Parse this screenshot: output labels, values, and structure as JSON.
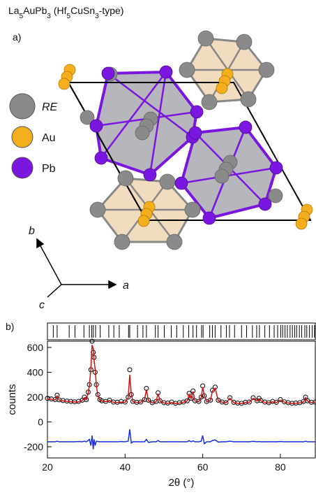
{
  "title_parts": [
    {
      "text": "La"
    },
    {
      "text": "5",
      "sub": true
    },
    {
      "text": "AuPb"
    },
    {
      "text": "3",
      "sub": true
    },
    {
      "text": " (Hf"
    },
    {
      "text": "5",
      "sub": true
    },
    {
      "text": "CuSn"
    },
    {
      "text": "3",
      "sub": true
    },
    {
      "text": "-type)"
    }
  ],
  "structure": {
    "panel_label": "a)",
    "legend": [
      {
        "label": "RE",
        "color": "#8a8a8a",
        "italic": true
      },
      {
        "label": "Au",
        "color": "#f5ae1e"
      },
      {
        "label": "Pb",
        "color": "#7b16e0"
      }
    ],
    "axes": {
      "a": "a",
      "b": "b",
      "c": "c"
    }
  },
  "chart_data": {
    "type": "line",
    "panel_label": "b)",
    "xlabel": "2θ (°)",
    "ylabel": "counts",
    "xlim": [
      20,
      89
    ],
    "ylim": [
      -290,
      650
    ],
    "xticks": [
      20,
      40,
      60,
      80
    ],
    "yticks": [
      600,
      400,
      200,
      0,
      -200
    ],
    "reflections": [
      21.5,
      22.5,
      25.6,
      27.1,
      29.4,
      30.8,
      31.4,
      31.8,
      32.4,
      33.6,
      35.8,
      37.1,
      38.5,
      40.9,
      41.2,
      43.2,
      44.6,
      45.5,
      47.8,
      48.5,
      50.1,
      51.9,
      53.3,
      55.0,
      56.4,
      57.5,
      58.4,
      59.7,
      60.1,
      61.8,
      62.5,
      63.2,
      64.7,
      66.1,
      66.9,
      68.2,
      70.0,
      71.3,
      72.8,
      73.9,
      74.6,
      76.0,
      77.2,
      78.4,
      79.3,
      80.1,
      80.6,
      81.2,
      81.8,
      82.5,
      83.1,
      83.7,
      84.2,
      84.9,
      85.5,
      86.3,
      86.8,
      87.5,
      88.2,
      88.8
    ],
    "x": [
      20,
      21,
      22,
      22.5,
      23,
      24,
      25,
      26,
      27,
      28,
      29,
      29.5,
      30,
      30.5,
      30.8,
      31.2,
      31.5,
      31.8,
      32,
      32.3,
      32.6,
      33,
      33.5,
      34,
      35,
      36,
      37,
      38,
      39,
      40,
      40.8,
      41.2,
      41.6,
      42,
      43,
      44,
      45,
      45.5,
      46,
      47,
      48,
      48.5,
      49,
      50,
      51,
      52,
      53,
      54,
      55,
      56,
      56.5,
      57,
      57.5,
      58,
      59,
      59.6,
      60,
      60.4,
      61,
      62,
      62.5,
      63.2,
      64,
      65,
      66,
      67,
      68,
      69,
      70,
      71,
      72,
      73,
      74,
      74.5,
      75,
      76,
      77,
      78,
      79,
      80,
      81,
      82,
      83,
      84,
      85,
      86,
      86.5,
      87,
      88,
      89
    ],
    "series": [
      {
        "color": "#000000",
        "style": "markers",
        "values": [
          190,
          185,
          180,
          215,
          178,
          172,
          168,
          165,
          162,
          165,
          175,
          200,
          180,
          240,
          300,
          420,
          650,
          560,
          520,
          400,
          300,
          220,
          180,
          170,
          165,
          175,
          160,
          158,
          165,
          160,
          200,
          420,
          220,
          165,
          158,
          160,
          180,
          270,
          175,
          155,
          165,
          235,
          170,
          155,
          152,
          160,
          150,
          155,
          160,
          170,
          230,
          190,
          250,
          170,
          165,
          200,
          290,
          210,
          165,
          175,
          255,
          280,
          175,
          160,
          155,
          195,
          158,
          152,
          150,
          158,
          160,
          195,
          170,
          190,
          172,
          160,
          155,
          165,
          158,
          180,
          162,
          155,
          150,
          152,
          155,
          165,
          200,
          170,
          158,
          160
        ]
      },
      {
        "color": "#d01010",
        "style": "line",
        "values": [
          185,
          182,
          178,
          210,
          176,
          170,
          166,
          163,
          160,
          162,
          172,
          195,
          178,
          232,
          290,
          430,
          620,
          590,
          500,
          420,
          295,
          215,
          178,
          168,
          163,
          172,
          158,
          156,
          160,
          158,
          195,
          380,
          225,
          163,
          156,
          158,
          178,
          260,
          172,
          153,
          162,
          228,
          168,
          153,
          150,
          157,
          148,
          152,
          158,
          168,
          222,
          186,
          245,
          168,
          163,
          196,
          280,
          215,
          163,
          172,
          248,
          272,
          172,
          158,
          153,
          190,
          156,
          150,
          148,
          156,
          158,
          190,
          168,
          186,
          170,
          158,
          153,
          162,
          156,
          176,
          160,
          153,
          148,
          150,
          153,
          162,
          195,
          168,
          156,
          158
        ]
      },
      {
        "color": "#1a2ee0",
        "style": "line",
        "values": [
          -160,
          -160,
          -160,
          -155,
          -160,
          -160,
          -160,
          -160,
          -160,
          -158,
          -160,
          -155,
          -160,
          -150,
          -140,
          -190,
          -110,
          -220,
          -140,
          -190,
          -155,
          -158,
          -160,
          -160,
          -160,
          -160,
          -160,
          -160,
          -158,
          -160,
          -155,
          -60,
          -170,
          -160,
          -160,
          -160,
          -160,
          -140,
          -165,
          -160,
          -160,
          -150,
          -160,
          -160,
          -160,
          -160,
          -160,
          -160,
          -160,
          -160,
          -150,
          -160,
          -152,
          -160,
          -160,
          -155,
          -110,
          -175,
          -160,
          -160,
          -150,
          -145,
          -162,
          -160,
          -160,
          -155,
          -160,
          -160,
          -160,
          -160,
          -160,
          -156,
          -160,
          -158,
          -160,
          -160,
          -160,
          -160,
          -160,
          -158,
          -160,
          -160,
          -160,
          -160,
          -160,
          -160,
          -155,
          -160,
          -160,
          -160
        ]
      }
    ]
  }
}
